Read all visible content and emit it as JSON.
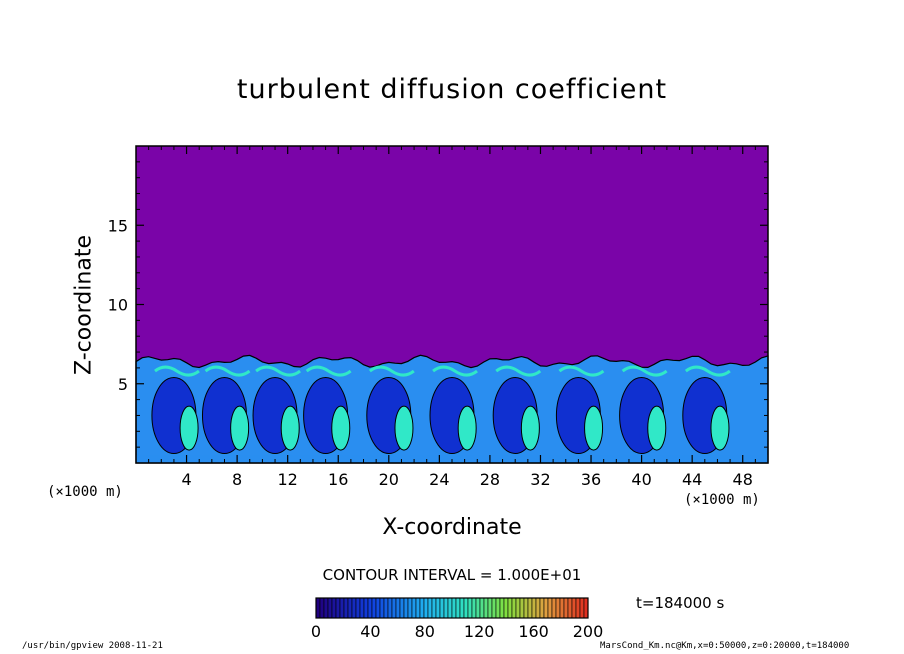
{
  "chart_data": {
    "type": "heatmap",
    "title": "turbulent diffusion coefficient",
    "xlabel": "X-coordinate",
    "ylabel": "Z-coordinate",
    "x_unit_left": "(×1000 m)",
    "x_unit_right": "(×1000 m)",
    "xlim": [
      0,
      50
    ],
    "ylim": [
      0,
      20
    ],
    "x_ticks": [
      4,
      8,
      12,
      16,
      20,
      24,
      28,
      32,
      36,
      40,
      44,
      48
    ],
    "y_ticks": [
      5,
      10,
      15
    ],
    "contour_interval_text": "CONTOUR INTERVAL = 1.000E+01",
    "time_text": "t=184000 s",
    "colorbar": {
      "ticks": [
        0,
        40,
        80,
        120,
        160,
        200
      ],
      "min": 0,
      "max": 200
    },
    "boundary_layer_top_z": 6.4,
    "field_description_values": {
      "background_value": 0
    }
  },
  "footer": {
    "left": "/usr/bin/gpview   2008-11-21",
    "right": "MarsCond_Km.nc@Km,x=0:50000,z=0:20000,t=184000"
  },
  "colors": {
    "background_field": "#7a04a8",
    "low": "#1030d0",
    "mid": "#2a8ef0",
    "high": "#30e8c8"
  }
}
